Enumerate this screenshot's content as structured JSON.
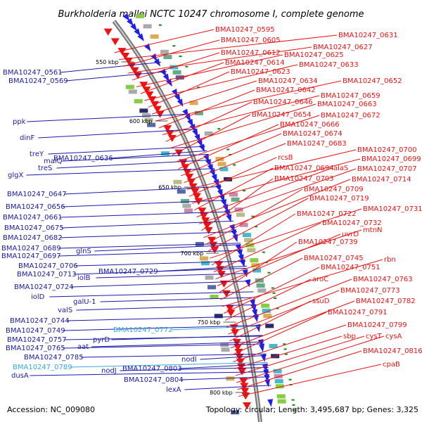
{
  "title": "Burkholderia mallei NCTC 10247 chromosome I, complete genome",
  "footer": {
    "accession": "Accession: NC_009080",
    "stats": "Topology: circular; Length: 3,495,687 bp; Genes: 3,325"
  },
  "colors": {
    "forward": "#2020ee",
    "reverse": "#ee1111",
    "highlight": "#33aadd",
    "backbone": "#999999",
    "tick": "#118811"
  },
  "kbp_labels": [
    "550 kbp",
    "600 kbp",
    "650 kbp",
    "700 kbp",
    "750 kbp",
    "800 kbp"
  ],
  "left_labels": [
    {
      "text": "BMA10247_0561",
      "color": "#1a1aaa"
    },
    {
      "text": "BMA10247_0569",
      "color": "#1a1aaa"
    },
    {
      "text": "ppk",
      "color": "#1a1aaa"
    },
    {
      "text": "dinF",
      "color": "#1a1aaa"
    },
    {
      "text": "treY",
      "color": "#1a1aaa"
    },
    {
      "text": "malQ",
      "color": "#1a1aaa"
    },
    {
      "text": "treS",
      "color": "#1a1aaa"
    },
    {
      "text": "BMA10247_0636",
      "color": "#1a1aaa"
    },
    {
      "text": "glgX",
      "color": "#1a1aaa"
    },
    {
      "text": "BMA10247_0647",
      "color": "#1a1aaa"
    },
    {
      "text": "BMA10247_0656",
      "color": "#1a1aaa"
    },
    {
      "text": "BMA10247_0661",
      "color": "#1a1aaa"
    },
    {
      "text": "BMA10247_0675",
      "color": "#1a1aaa"
    },
    {
      "text": "BMA10247_0682",
      "color": "#1a1aaa"
    },
    {
      "text": "BMA10247_0689",
      "color": "#1a1aaa"
    },
    {
      "text": "glnS",
      "color": "#1a1aaa"
    },
    {
      "text": "BMA10247_0697",
      "color": "#1a1aaa"
    },
    {
      "text": "BMA10247_0706",
      "color": "#1a1aaa"
    },
    {
      "text": "BMA10247_0713",
      "color": "#1a1aaa"
    },
    {
      "text": "BMA10247_0729",
      "color": "#1a1aaa"
    },
    {
      "text": "iolB",
      "color": "#1a1aaa"
    },
    {
      "text": "BMA10247_0724",
      "color": "#1a1aaa"
    },
    {
      "text": "iolD",
      "color": "#1a1aaa"
    },
    {
      "text": "galU-1",
      "color": "#1a1aaa"
    },
    {
      "text": "valS",
      "color": "#1a1aaa"
    },
    {
      "text": "BMA10247_0744",
      "color": "#1a1aaa"
    },
    {
      "text": "BMA10247_0772",
      "color": "#33aadd"
    },
    {
      "text": "BMA10247_0749",
      "color": "#1a1aaa"
    },
    {
      "text": "pyrD",
      "color": "#1a1aaa"
    },
    {
      "text": "BMA10247_0757",
      "color": "#1a1aaa"
    },
    {
      "text": "aat",
      "color": "#1a1aaa"
    },
    {
      "text": "BMA10247_0765",
      "color": "#1a1aaa"
    },
    {
      "text": "BMA10247_0785",
      "color": "#1a1aaa"
    },
    {
      "text": "BMA10247_0789",
      "color": "#33aadd"
    },
    {
      "text": "nodI",
      "color": "#1a1aaa"
    },
    {
      "text": "nodJ",
      "color": "#1a1aaa"
    },
    {
      "text": "BMA10247_0803",
      "color": "#1a1aaa"
    },
    {
      "text": "dusA",
      "color": "#1a1aaa"
    },
    {
      "text": "BMA10247_0804",
      "color": "#1a1aaa"
    },
    {
      "text": "lexA",
      "color": "#1a1aaa"
    }
  ],
  "right_labels": [
    {
      "text": "BMA10247_0595"
    },
    {
      "text": "BMA10247_0631"
    },
    {
      "text": "BMA10247_0605"
    },
    {
      "text": "BMA10247_0627"
    },
    {
      "text": "BMA10247_0612"
    },
    {
      "text": "BMA10247_0625"
    },
    {
      "text": "BMA10247_0614"
    },
    {
      "text": "BMA10247_0633"
    },
    {
      "text": "BMA10247_0623"
    },
    {
      "text": "BMA10247_0634"
    },
    {
      "text": "BMA10247_0652"
    },
    {
      "text": "BMA10247_0642"
    },
    {
      "text": "BMA10247_0659"
    },
    {
      "text": "BMA10247_0646"
    },
    {
      "text": "BMA10247_0663"
    },
    {
      "text": "BMA10247_0654"
    },
    {
      "text": "BMA10247_0672"
    },
    {
      "text": "BMA10247_0666"
    },
    {
      "text": "BMA10247_0674"
    },
    {
      "text": "BMA10247_0683"
    },
    {
      "text": "BMA10247_0700"
    },
    {
      "text": "rcsB"
    },
    {
      "text": "BMA10247_0699"
    },
    {
      "text": "BMA10247_0694"
    },
    {
      "text": "alaS"
    },
    {
      "text": "BMA10247_0707"
    },
    {
      "text": "BMA10247_0703"
    },
    {
      "text": "BMA10247_0714"
    },
    {
      "text": "BMA10247_0709"
    },
    {
      "text": "BMA10247_0719"
    },
    {
      "text": "BMA10247_0731"
    },
    {
      "text": "BMA10247_0722"
    },
    {
      "text": "BMA10247_0732"
    },
    {
      "text": "mtnN"
    },
    {
      "text": "uvrD"
    },
    {
      "text": "BMA10247_0739"
    },
    {
      "text": "BMA10247_0745"
    },
    {
      "text": "rbn"
    },
    {
      "text": "BMA10247_0751"
    },
    {
      "text": "aroC"
    },
    {
      "text": "BMA10247_0763"
    },
    {
      "text": "BMA10247_0773"
    },
    {
      "text": "ssuD"
    },
    {
      "text": "BMA10247_0782"
    },
    {
      "text": "BMA10247_0791"
    },
    {
      "text": "BMA10247_0799"
    },
    {
      "text": "sbp"
    },
    {
      "text": "cysT"
    },
    {
      "text": "cysA"
    },
    {
      "text": "BMA10247_0816"
    },
    {
      "text": "cpaB"
    }
  ]
}
